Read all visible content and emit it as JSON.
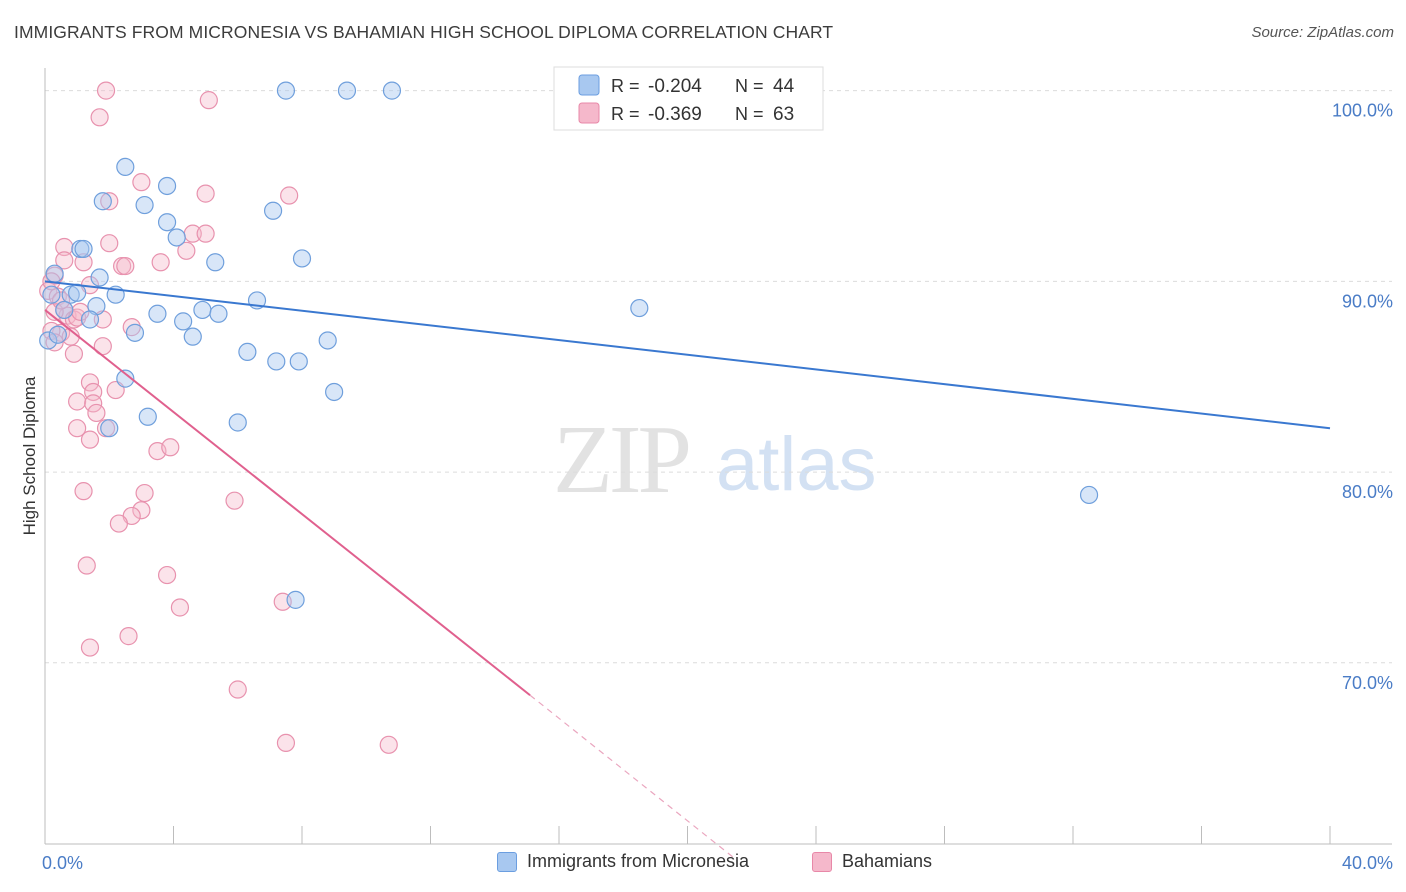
{
  "title": "IMMIGRANTS FROM MICRONESIA VS BAHAMIAN HIGH SCHOOL DIPLOMA CORRELATION CHART",
  "source": "Source: ZipAtlas.com",
  "watermark": {
    "zip": "ZIP",
    "atlas": "atlas"
  },
  "legend_top": {
    "rows": [
      {
        "r_label": "R = ",
        "r_value": "-0.204",
        "n_label": "N = ",
        "n_value": "44",
        "color": "#a8c8f0",
        "stroke": "#6b9ee0"
      },
      {
        "r_label": "R = ",
        "r_value": "-0.369",
        "n_label": "N = ",
        "n_value": "63",
        "color": "#f5b8cb",
        "stroke": "#e888a8"
      }
    ]
  },
  "legend_bottom": [
    {
      "label": "Immigrants from Micronesia",
      "color": "#a8c8f0",
      "stroke": "#6b9ee0"
    },
    {
      "label": "Bahamians",
      "color": "#f5b8cb",
      "stroke": "#e888a8"
    }
  ],
  "colors": {
    "blue": "#3a78d0",
    "pink": "#e0608e",
    "tick": "#4a7cc6"
  },
  "chart_data": {
    "type": "scatter",
    "title": "IMMIGRANTS FROM MICRONESIA VS BAHAMIAN HIGH SCHOOL DIPLOMA CORRELATION CHART",
    "xlabel": "",
    "ylabel": "High School Diploma",
    "xlim": [
      0,
      40
    ],
    "ylim": [
      60.5,
      101.5
    ],
    "x_tick_labels": [
      "0.0%",
      "40.0%"
    ],
    "y_ticks": [
      70,
      80,
      90,
      100
    ],
    "y_tick_labels": [
      "70.0%",
      "80.0%",
      "90.0%",
      "100.0%"
    ],
    "grid": true,
    "series": [
      {
        "name": "Immigrants from Micronesia",
        "r": -0.204,
        "n": 44,
        "trend": {
          "x": [
            0,
            40
          ],
          "y": [
            90.0,
            82.3
          ]
        },
        "points": [
          [
            7.5,
            100
          ],
          [
            9.4,
            100
          ],
          [
            10.8,
            100
          ],
          [
            2.5,
            96
          ],
          [
            3.8,
            95
          ],
          [
            1.8,
            94.2
          ],
          [
            3.1,
            94
          ],
          [
            7.1,
            93.7
          ],
          [
            3.8,
            93.1
          ],
          [
            4.1,
            92.3
          ],
          [
            1.1,
            91.7
          ],
          [
            1.2,
            91.7
          ],
          [
            8.0,
            91.2
          ],
          [
            5.3,
            91
          ],
          [
            0.3,
            90.4
          ],
          [
            1.7,
            90.2
          ],
          [
            0.8,
            89.3
          ],
          [
            1.0,
            89.4
          ],
          [
            2.2,
            89.3
          ],
          [
            6.6,
            89.0
          ],
          [
            1.6,
            88.7
          ],
          [
            0.2,
            89.3
          ],
          [
            3.5,
            88.3
          ],
          [
            4.9,
            88.5
          ],
          [
            5.4,
            88.3
          ],
          [
            18.5,
            88.6
          ],
          [
            1.4,
            88.0
          ],
          [
            4.3,
            87.9
          ],
          [
            2.8,
            87.3
          ],
          [
            4.6,
            87.1
          ],
          [
            8.8,
            86.9
          ],
          [
            6.3,
            86.3
          ],
          [
            7.2,
            85.8
          ],
          [
            7.9,
            85.8
          ],
          [
            2.5,
            84.9
          ],
          [
            9.0,
            84.2
          ],
          [
            3.2,
            82.9
          ],
          [
            6.0,
            82.6
          ],
          [
            2.0,
            82.3
          ],
          [
            32.5,
            78.8
          ],
          [
            7.8,
            73.3
          ],
          [
            0.1,
            86.9
          ],
          [
            0.4,
            87.2
          ],
          [
            0.6,
            88.5
          ]
        ]
      },
      {
        "name": "Bahamians",
        "r": -0.369,
        "n": 63,
        "trend": {
          "x": [
            0,
            15.1
          ],
          "y": [
            88.5,
            68.3
          ]
        },
        "trend_dashed": {
          "x": [
            15.1,
            21.5
          ],
          "y": [
            68.3,
            59.7
          ]
        },
        "points": [
          [
            1.9,
            100
          ],
          [
            5.1,
            99.5
          ],
          [
            1.7,
            98.6
          ],
          [
            3.0,
            95.2
          ],
          [
            5.0,
            94.6
          ],
          [
            7.6,
            94.5
          ],
          [
            2.0,
            94.2
          ],
          [
            4.6,
            92.5
          ],
          [
            5.0,
            92.5
          ],
          [
            2.0,
            92.0
          ],
          [
            0.6,
            91.8
          ],
          [
            4.4,
            91.6
          ],
          [
            0.6,
            91.1
          ],
          [
            1.2,
            91.0
          ],
          [
            3.6,
            91.0
          ],
          [
            2.4,
            90.8
          ],
          [
            2.5,
            90.8
          ],
          [
            0.3,
            90.3
          ],
          [
            1.4,
            89.8
          ],
          [
            0.1,
            89.5
          ],
          [
            0.4,
            89.2
          ],
          [
            0.6,
            88.5
          ],
          [
            0.7,
            88.2
          ],
          [
            0.9,
            88.0
          ],
          [
            1.8,
            88.0
          ],
          [
            1.0,
            88.1
          ],
          [
            0.3,
            88.4
          ],
          [
            0.5,
            87.3
          ],
          [
            0.8,
            87.1
          ],
          [
            2.7,
            87.6
          ],
          [
            0.9,
            86.2
          ],
          [
            1.8,
            86.6
          ],
          [
            1.4,
            84.7
          ],
          [
            1.5,
            84.2
          ],
          [
            2.2,
            84.3
          ],
          [
            1.0,
            83.7
          ],
          [
            1.5,
            83.6
          ],
          [
            1.6,
            83.1
          ],
          [
            1.0,
            82.3
          ],
          [
            1.9,
            82.3
          ],
          [
            1.4,
            81.7
          ],
          [
            3.5,
            81.1
          ],
          [
            3.9,
            81.3
          ],
          [
            1.2,
            79.0
          ],
          [
            3.1,
            78.9
          ],
          [
            5.9,
            78.5
          ],
          [
            3.0,
            78.0
          ],
          [
            2.7,
            77.7
          ],
          [
            2.3,
            77.3
          ],
          [
            1.3,
            75.1
          ],
          [
            3.8,
            74.6
          ],
          [
            4.2,
            72.9
          ],
          [
            7.4,
            73.2
          ],
          [
            2.6,
            71.4
          ],
          [
            1.4,
            70.8
          ],
          [
            6.0,
            68.6
          ],
          [
            7.5,
            65.8
          ],
          [
            10.7,
            65.7
          ],
          [
            0.2,
            90.0
          ],
          [
            0.5,
            89.0
          ],
          [
            1.1,
            88.4
          ],
          [
            0.2,
            87.4
          ],
          [
            0.3,
            86.8
          ]
        ]
      }
    ]
  }
}
